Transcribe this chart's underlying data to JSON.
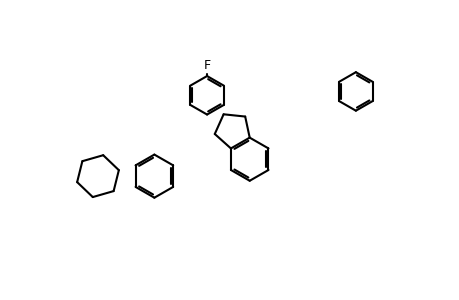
{
  "figsize": [
    4.6,
    3.0
  ],
  "dpi": 100,
  "background": "#ffffff",
  "line_color": "#000000",
  "lw": 1.5,
  "font_size": 9,
  "font_size_small": 8
}
